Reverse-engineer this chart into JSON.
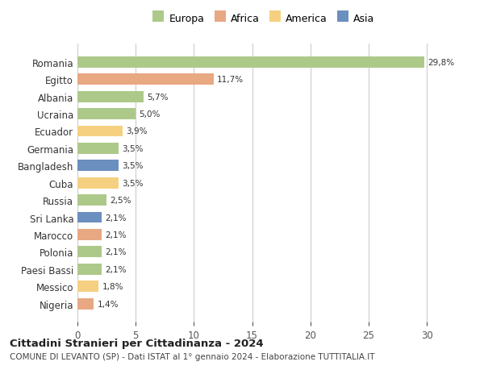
{
  "countries": [
    "Romania",
    "Egitto",
    "Albania",
    "Ucraina",
    "Ecuador",
    "Germania",
    "Bangladesh",
    "Cuba",
    "Russia",
    "Sri Lanka",
    "Marocco",
    "Polonia",
    "Paesi Bassi",
    "Messico",
    "Nigeria"
  ],
  "values": [
    29.8,
    11.7,
    5.7,
    5.0,
    3.9,
    3.5,
    3.5,
    3.5,
    2.5,
    2.1,
    2.1,
    2.1,
    2.1,
    1.8,
    1.4
  ],
  "labels": [
    "29,8%",
    "11,7%",
    "5,7%",
    "5,0%",
    "3,9%",
    "3,5%",
    "3,5%",
    "3,5%",
    "2,5%",
    "2,1%",
    "2,1%",
    "2,1%",
    "2,1%",
    "1,8%",
    "1,4%"
  ],
  "colors": [
    "#adc98a",
    "#e8a882",
    "#adc98a",
    "#adc98a",
    "#f5d080",
    "#adc98a",
    "#6b8fbf",
    "#f5d080",
    "#adc98a",
    "#6b8fbf",
    "#e8a882",
    "#adc98a",
    "#adc98a",
    "#f5d080",
    "#e8a882"
  ],
  "continent_colors": {
    "Europa": "#adc98a",
    "Africa": "#e8a882",
    "America": "#f5d080",
    "Asia": "#6b8fbf"
  },
  "title": "Cittadini Stranieri per Cittadinanza - 2024",
  "subtitle": "COMUNE DI LEVANTO (SP) - Dati ISTAT al 1° gennaio 2024 - Elaborazione TUTTITALIA.IT",
  "xlim": [
    0,
    32
  ],
  "xticks": [
    0,
    5,
    10,
    15,
    20,
    25,
    30
  ],
  "bg_color": "#ffffff",
  "grid_color": "#cccccc",
  "bar_height": 0.65
}
